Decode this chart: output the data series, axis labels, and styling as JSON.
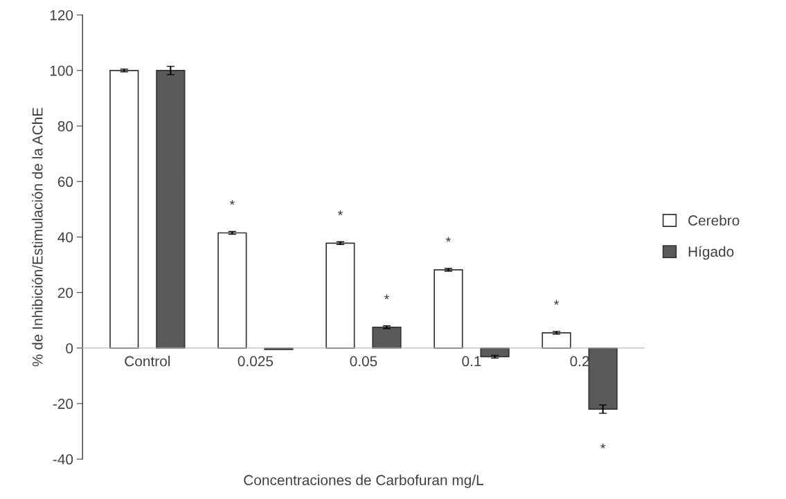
{
  "chart_data": {
    "type": "bar",
    "xlabel": "Concentraciones de Carbofuran mg/L",
    "ylabel": "% de Inhibición/Estimulación de la AChE",
    "categories": [
      "Control",
      "0.025",
      "0.05",
      "0.1",
      "0.2"
    ],
    "series": [
      {
        "name": "Cerebro",
        "color": "#ffffff",
        "values": [
          100,
          41.5,
          37.8,
          28.2,
          5.5
        ],
        "errors": [
          0.5,
          0.5,
          0.5,
          0.5,
          0.5
        ],
        "value_labels": [
          null,
          "*",
          "*",
          "*",
          "*"
        ]
      },
      {
        "name": "Hígado",
        "color": "#5a5a5a",
        "values": [
          100,
          -0.5,
          7.5,
          -3.1,
          -22
        ],
        "errors": [
          1.5,
          null,
          0.5,
          0.5,
          1.5
        ],
        "value_labels": [
          null,
          null,
          "*",
          null,
          "*"
        ]
      }
    ],
    "ylim": [
      -40,
      120
    ],
    "yticks": [
      -40,
      -20,
      0,
      20,
      40,
      60,
      80,
      100,
      120
    ],
    "grid": false,
    "legend": "right"
  }
}
